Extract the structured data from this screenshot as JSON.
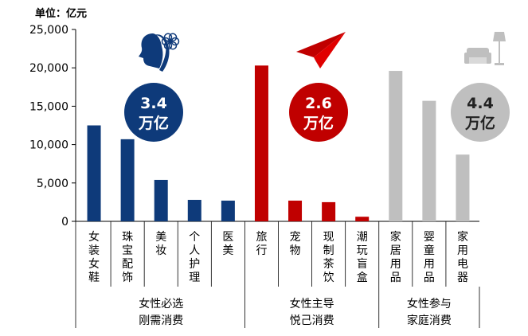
{
  "unit_label": "单位：亿元",
  "chart_data": {
    "type": "bar",
    "ylabel": "单位：亿元",
    "ylim": [
      0,
      25000
    ],
    "yticks": [
      "25,000",
      "20,000",
      "15,000",
      "10,000",
      "5,000",
      "0"
    ],
    "grid": false,
    "categories": [
      "女装女鞋",
      "珠宝配饰",
      "美妆",
      "个人护理",
      "医美",
      "旅行",
      "宠物",
      "现制茶饮",
      "潮玩盲盒",
      "家居用品",
      "婴童用品",
      "家用电器"
    ],
    "values": [
      12500,
      10700,
      5400,
      2800,
      2700,
      20300,
      2700,
      2500,
      600,
      19600,
      15700,
      8700
    ],
    "groups": [
      {
        "label": "女性必选\n刚需消费",
        "total": "3.4\n万亿",
        "color": "#0e3a7a",
        "icon": "woman-flower-icon",
        "count": 5
      },
      {
        "label": "女性主导\n悦己消费",
        "total": "2.6\n万亿",
        "color": "#c00000",
        "icon": "paper-plane-icon",
        "count": 4
      },
      {
        "label": "女性参与\n家庭消费",
        "total": "4.4\n万亿",
        "color": "#bfbfbf",
        "icon": "sofa-lamp-icon",
        "count": 3
      }
    ]
  }
}
